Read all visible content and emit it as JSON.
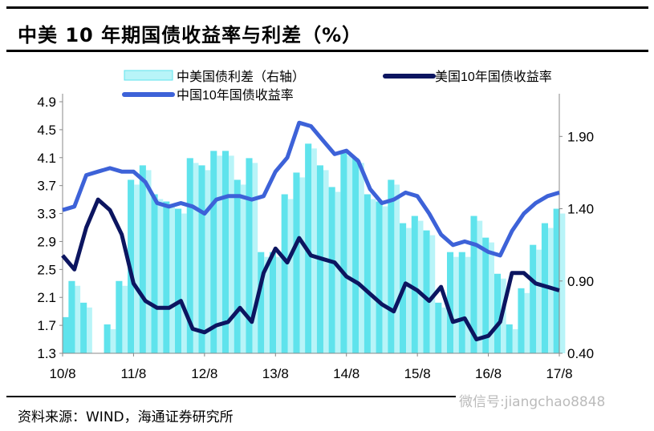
{
  "title": "中美 10 年期国债收益率与利差（%）",
  "source": "资料来源：WIND，海通证券研究所",
  "watermark": "微信号:jiangchao8848",
  "colors": {
    "china": "#3d62d8",
    "us": "#0c1560",
    "spread": "#5fe3ec",
    "spread_light": "#b8f4f8"
  },
  "chart_data": {
    "type": "bar+line",
    "title": "中美 10 年期国债收益率与利差（%）",
    "legend": [
      "中美国债利差（右轴）",
      "美国10年国债收益率",
      "中国10年国债收益率"
    ],
    "legend_placement": "top",
    "x_ticks": [
      "10/8",
      "11/8",
      "12/8",
      "13/8",
      "14/8",
      "15/8",
      "16/8",
      "17/8"
    ],
    "y_left": {
      "ticks": [
        "1.3",
        "1.7",
        "2.1",
        "2.5",
        "2.9",
        "3.3",
        "3.7",
        "4.1",
        "4.5",
        "4.9"
      ],
      "range": [
        1.3,
        4.9
      ]
    },
    "y_right": {
      "ticks": [
        "0.40",
        "0.90",
        "1.40",
        "1.90"
      ],
      "range": [
        0.4,
        2.14
      ]
    },
    "x": [
      "10/8",
      "10/10",
      "10/12",
      "11/2",
      "11/4",
      "11/6",
      "11/8",
      "11/10",
      "11/12",
      "12/2",
      "12/4",
      "12/6",
      "12/8",
      "12/10",
      "12/12",
      "13/2",
      "13/4",
      "13/6",
      "13/8",
      "13/10",
      "13/12",
      "14/2",
      "14/4",
      "14/6",
      "14/8",
      "14/10",
      "14/12",
      "15/2",
      "15/4",
      "15/6",
      "15/8",
      "15/10",
      "15/12",
      "16/2",
      "16/4",
      "16/6",
      "16/8",
      "16/10",
      "16/12",
      "17/2",
      "17/4",
      "17/6",
      "17/8"
    ],
    "series": [
      {
        "name": "中国10年国债收益率",
        "axis": "left",
        "values": [
          3.35,
          3.4,
          3.85,
          3.9,
          3.95,
          3.9,
          3.9,
          3.75,
          3.45,
          3.4,
          3.45,
          3.4,
          3.3,
          3.5,
          3.55,
          3.55,
          3.5,
          3.55,
          3.9,
          4.1,
          4.6,
          4.55,
          4.35,
          4.15,
          4.2,
          4.05,
          3.65,
          3.45,
          3.5,
          3.6,
          3.55,
          3.3,
          3.0,
          2.85,
          2.9,
          2.85,
          2.75,
          2.7,
          3.05,
          3.3,
          3.45,
          3.55,
          3.6
        ]
      },
      {
        "name": "美国10年国债收益率",
        "axis": "left",
        "values": [
          2.7,
          2.5,
          3.1,
          3.5,
          3.35,
          3.0,
          2.3,
          2.05,
          1.95,
          1.95,
          2.05,
          1.65,
          1.6,
          1.7,
          1.75,
          1.95,
          1.75,
          2.45,
          2.8,
          2.6,
          2.95,
          2.7,
          2.65,
          2.6,
          2.4,
          2.3,
          2.15,
          2.0,
          1.9,
          2.3,
          2.2,
          2.05,
          2.25,
          1.75,
          1.8,
          1.5,
          1.55,
          1.75,
          2.45,
          2.45,
          2.3,
          2.25,
          2.2
        ]
      },
      {
        "name": "中美国债利差（右轴）",
        "axis": "right",
        "values": [
          0.65,
          0.9,
          0.75,
          0.4,
          0.6,
          0.9,
          1.6,
          1.7,
          1.5,
          1.45,
          1.4,
          1.75,
          1.7,
          1.8,
          1.8,
          1.6,
          1.75,
          1.1,
          1.1,
          1.5,
          1.65,
          1.85,
          1.7,
          1.55,
          1.8,
          1.75,
          1.5,
          1.45,
          1.6,
          1.3,
          1.35,
          1.25,
          0.75,
          1.1,
          1.1,
          1.35,
          1.2,
          0.95,
          0.6,
          0.85,
          1.15,
          1.3,
          1.4
        ]
      }
    ]
  }
}
